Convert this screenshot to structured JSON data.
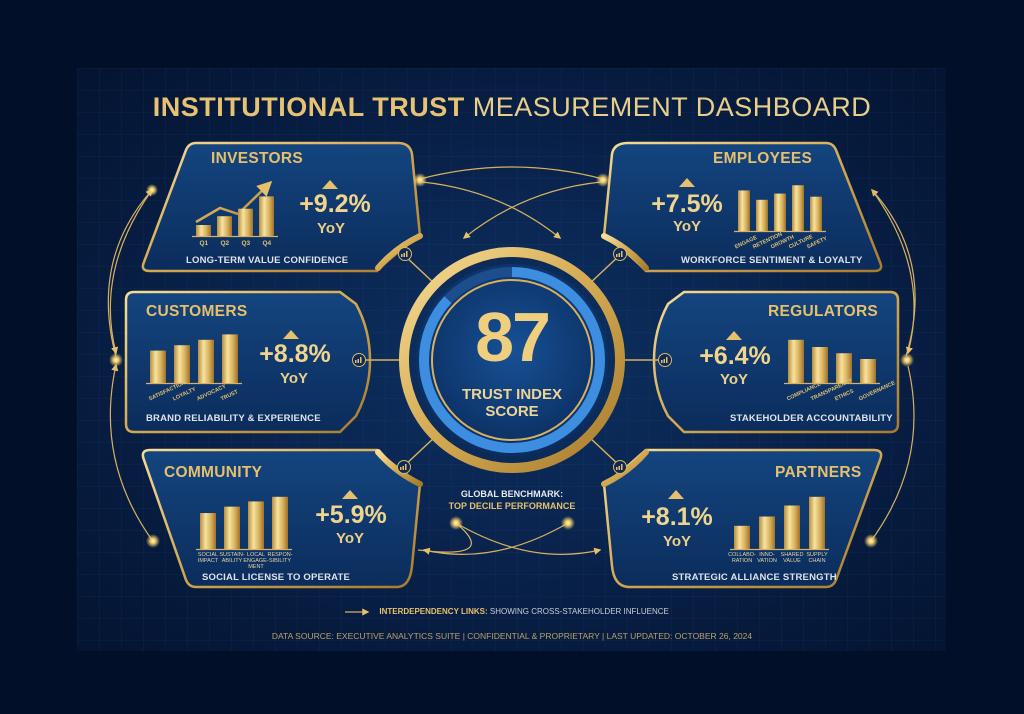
{
  "title": {
    "bold": "INSTITUTIONAL TRUST",
    "light": "MEASUREMENT DASHBOARD"
  },
  "center": {
    "score": "87",
    "label_line1": "TRUST INDEX",
    "label_line2": "SCORE",
    "benchmark_line1": "GLOBAL BENCHMARK:",
    "benchmark_line2": "TOP DECILE PERFORMANCE",
    "ring_progress_percent": 87
  },
  "cards": {
    "investors": {
      "title": "INVESTORS",
      "change": "+9.2%",
      "period": "YoY",
      "subtitle": "LONG-TERM VALUE CONFIDENCE",
      "bars": [
        {
          "label": "Q1",
          "value": 25
        },
        {
          "label": "Q2",
          "value": 45
        },
        {
          "label": "Q3",
          "value": 62
        },
        {
          "label": "Q4",
          "value": 90
        }
      ]
    },
    "employees": {
      "title": "EMPLOYEES",
      "change": "+7.5%",
      "period": "YoY",
      "subtitle": "WORKFORCE SENTIMENT & LOYALTY",
      "bars": [
        {
          "label": "ENGAGE",
          "value": 78
        },
        {
          "label": "RETENTION",
          "value": 60
        },
        {
          "label": "GROWTH",
          "value": 72
        },
        {
          "label": "CULTURE",
          "value": 88
        },
        {
          "label": "SAFETY",
          "value": 66
        }
      ]
    },
    "customers": {
      "title": "CUSTOMERS",
      "change": "+8.8%",
      "period": "YoY",
      "subtitle": "BRAND RELIABILITY & EXPERIENCE",
      "bars": [
        {
          "label": "SATISFACTION",
          "value": 60
        },
        {
          "label": "LOYALTY",
          "value": 70
        },
        {
          "label": "ADVOCACY",
          "value": 80
        },
        {
          "label": "TRUST",
          "value": 90
        }
      ]
    },
    "regulators": {
      "title": "REGULATORS",
      "change": "+6.4%",
      "period": "YoY",
      "subtitle": "STAKEHOLDER ACCOUNTABILITY",
      "bars": [
        {
          "label": "COMPLIANCE",
          "value": 90
        },
        {
          "label": "TRANSPARENCY",
          "value": 75
        },
        {
          "label": "ETHICS",
          "value": 62
        },
        {
          "label": "GOVERNANCE",
          "value": 50
        }
      ]
    },
    "community": {
      "title": "COMMUNITY",
      "change": "+5.9%",
      "period": "YoY",
      "subtitle": "SOCIAL LICENSE TO OPERATE",
      "bars": [
        {
          "label": "SOCIAL IMPACT",
          "value": 62
        },
        {
          "label": "SUSTAIN-ABILITY",
          "value": 73
        },
        {
          "label": "LOCAL ENGAGE-MENT",
          "value": 82
        },
        {
          "label": "RESPON-SIBILITY",
          "value": 90
        }
      ]
    },
    "partners": {
      "title": "PARTNERS",
      "change": "+8.1%",
      "period": "YoY",
      "subtitle": "STRATEGIC ALLIANCE STRENGTH",
      "bars": [
        {
          "label": "COLLABO-RATION",
          "value": 40
        },
        {
          "label": "INNO-VATION",
          "value": 56
        },
        {
          "label": "SHARED VALUE",
          "value": 75
        },
        {
          "label": "SUPPLY CHAIN",
          "value": 90
        }
      ]
    }
  },
  "legend": {
    "bold": "INTERDEPENDENCY LINKS:",
    "text": "SHOWING CROSS-STAKEHOLDER INFLUENCE"
  },
  "footer": {
    "text": "DATA SOURCE: EXECUTIVE ANALYTICS SUITE | CONFIDENTIAL & PROPRIETARY | LAST UPDATED: OCTOBER 26, 2024"
  },
  "colors": {
    "background": "#020f28",
    "panel": "#0a2550",
    "gold": "#e6c06c",
    "gold_light": "#f0d58e",
    "ring_blue": "#3d8ee0",
    "subtitle_text": "#dfe3ea"
  }
}
